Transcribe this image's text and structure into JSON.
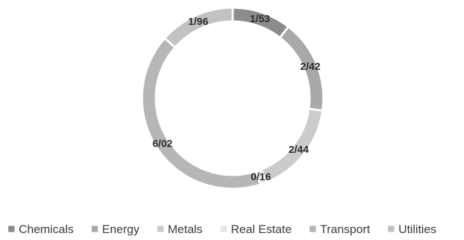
{
  "chart_data": {
    "type": "pie",
    "style": "donut",
    "labels": [
      "Chemicals",
      "Energy",
      "Metals",
      "Real Estate",
      "Transport",
      "Utilities"
    ],
    "data_labels": [
      "1/53",
      "2/42",
      "2/44",
      "0/16",
      "6/02",
      "1/96"
    ],
    "values": [
      1.53,
      2.42,
      2.44,
      0.16,
      6.02,
      1.96
    ],
    "colors": [
      "#8c8c8c",
      "#a9a9a9",
      "#cbcbcb",
      "#e6e6e6",
      "#b6b6b6",
      "#c2c2c2"
    ],
    "legend_position": "bottom"
  }
}
